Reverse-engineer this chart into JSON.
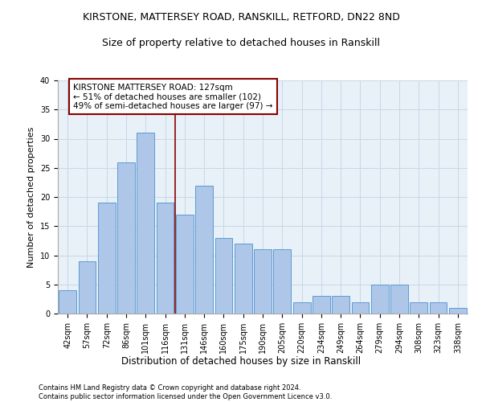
{
  "title1": "KIRSTONE, MATTERSEY ROAD, RANSKILL, RETFORD, DN22 8ND",
  "title2": "Size of property relative to detached houses in Ranskill",
  "xlabel": "Distribution of detached houses by size in Ranskill",
  "ylabel": "Number of detached properties",
  "categories": [
    "42sqm",
    "57sqm",
    "72sqm",
    "86sqm",
    "101sqm",
    "116sqm",
    "131sqm",
    "146sqm",
    "160sqm",
    "175sqm",
    "190sqm",
    "205sqm",
    "220sqm",
    "234sqm",
    "249sqm",
    "264sqm",
    "279sqm",
    "294sqm",
    "308sqm",
    "323sqm",
    "338sqm"
  ],
  "values": [
    4,
    9,
    19,
    26,
    31,
    19,
    17,
    22,
    13,
    12,
    11,
    11,
    2,
    3,
    3,
    2,
    5,
    5,
    2,
    2,
    1
  ],
  "bar_color": "#aec6e8",
  "bar_edge_color": "#5b9bd5",
  "vline_color": "#8b0000",
  "annotation_text": "KIRSTONE MATTERSEY ROAD: 127sqm\n← 51% of detached houses are smaller (102)\n49% of semi-detached houses are larger (97) →",
  "annotation_box_color": "white",
  "annotation_box_edge_color": "#8b0000",
  "ylim": [
    0,
    40
  ],
  "yticks": [
    0,
    5,
    10,
    15,
    20,
    25,
    30,
    35,
    40
  ],
  "grid_color": "#c8d8e8",
  "bg_color": "#e8f0f8",
  "footer": "Contains HM Land Registry data © Crown copyright and database right 2024.\nContains public sector information licensed under the Open Government Licence v3.0.",
  "title1_fontsize": 9,
  "title2_fontsize": 9,
  "xlabel_fontsize": 8.5,
  "ylabel_fontsize": 8,
  "tick_fontsize": 7,
  "annotation_fontsize": 7.5,
  "footer_fontsize": 6
}
